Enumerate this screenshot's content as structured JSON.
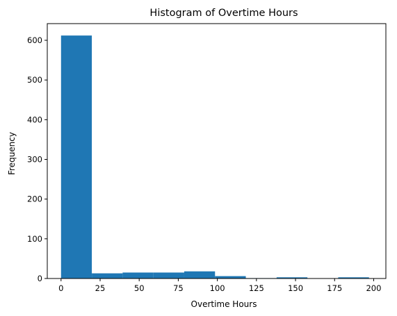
{
  "chart_data": {
    "type": "bar",
    "title": "Histogram of Overtime Hours",
    "xlabel": "Overtime Hours",
    "ylabel": "Frequency",
    "xlim": [
      -8.8,
      207.8
    ],
    "ylim": [
      0,
      642
    ],
    "xticks": [
      0,
      25,
      50,
      75,
      100,
      125,
      150,
      175,
      200
    ],
    "yticks": [
      0,
      100,
      200,
      300,
      400,
      500,
      600
    ],
    "bins": [
      {
        "x0": 0.0,
        "x1": 19.7,
        "count": 612
      },
      {
        "x0": 19.7,
        "x1": 39.4,
        "count": 13
      },
      {
        "x0": 39.4,
        "x1": 59.1,
        "count": 15
      },
      {
        "x0": 59.1,
        "x1": 78.8,
        "count": 15
      },
      {
        "x0": 78.8,
        "x1": 98.5,
        "count": 18
      },
      {
        "x0": 98.5,
        "x1": 118.2,
        "count": 6
      },
      {
        "x0": 118.2,
        "x1": 137.9,
        "count": 1
      },
      {
        "x0": 137.9,
        "x1": 157.6,
        "count": 3
      },
      {
        "x0": 157.6,
        "x1": 177.3,
        "count": 0
      },
      {
        "x0": 177.3,
        "x1": 197.0,
        "count": 3
      }
    ],
    "bar_color": "#1f77b4",
    "grid": false,
    "legend": "none"
  }
}
